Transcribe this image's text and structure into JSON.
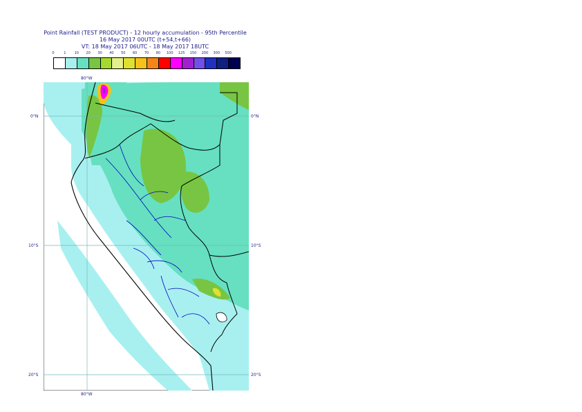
{
  "header": {
    "title_line1": "Point Rainfall (TEST PRODUCT) - 12 hourly accumulation - 95th Percentile",
    "title_line2": "16 May 2017 00UTC (t+54,t+66)",
    "title_line3": "VT: 18 May 2017 06UTC - 18 May 2017 18UTC"
  },
  "legend": {
    "thresholds": [
      "0",
      "1",
      "10",
      "20",
      "30",
      "40",
      "50",
      "60",
      "70",
      "80",
      "100",
      "125",
      "150",
      "200",
      "300",
      "500"
    ],
    "colors": [
      "#ffffff",
      "#a8f0f0",
      "#66e0c0",
      "#77c542",
      "#a6d92e",
      "#e4f08a",
      "#e0e030",
      "#f4c21a",
      "#f3851b",
      "#ff0000",
      "#ff00ff",
      "#a020d0",
      "#7050e8",
      "#2030c0",
      "#102080",
      "#000050"
    ]
  },
  "map": {
    "lon_labels": [
      "80°W",
      "80°W"
    ],
    "lat_labels": [
      "0°N",
      "0°N",
      "10°S",
      "10°S",
      "20°S",
      "20°S"
    ],
    "colors": {
      "sea_wet": "#a8f0f0",
      "land_moderate": "#66e0c0",
      "land_heavy": "#77c542",
      "border_country": "#000000",
      "border_region": "#0000c0",
      "grid": "#78b8b8"
    }
  }
}
